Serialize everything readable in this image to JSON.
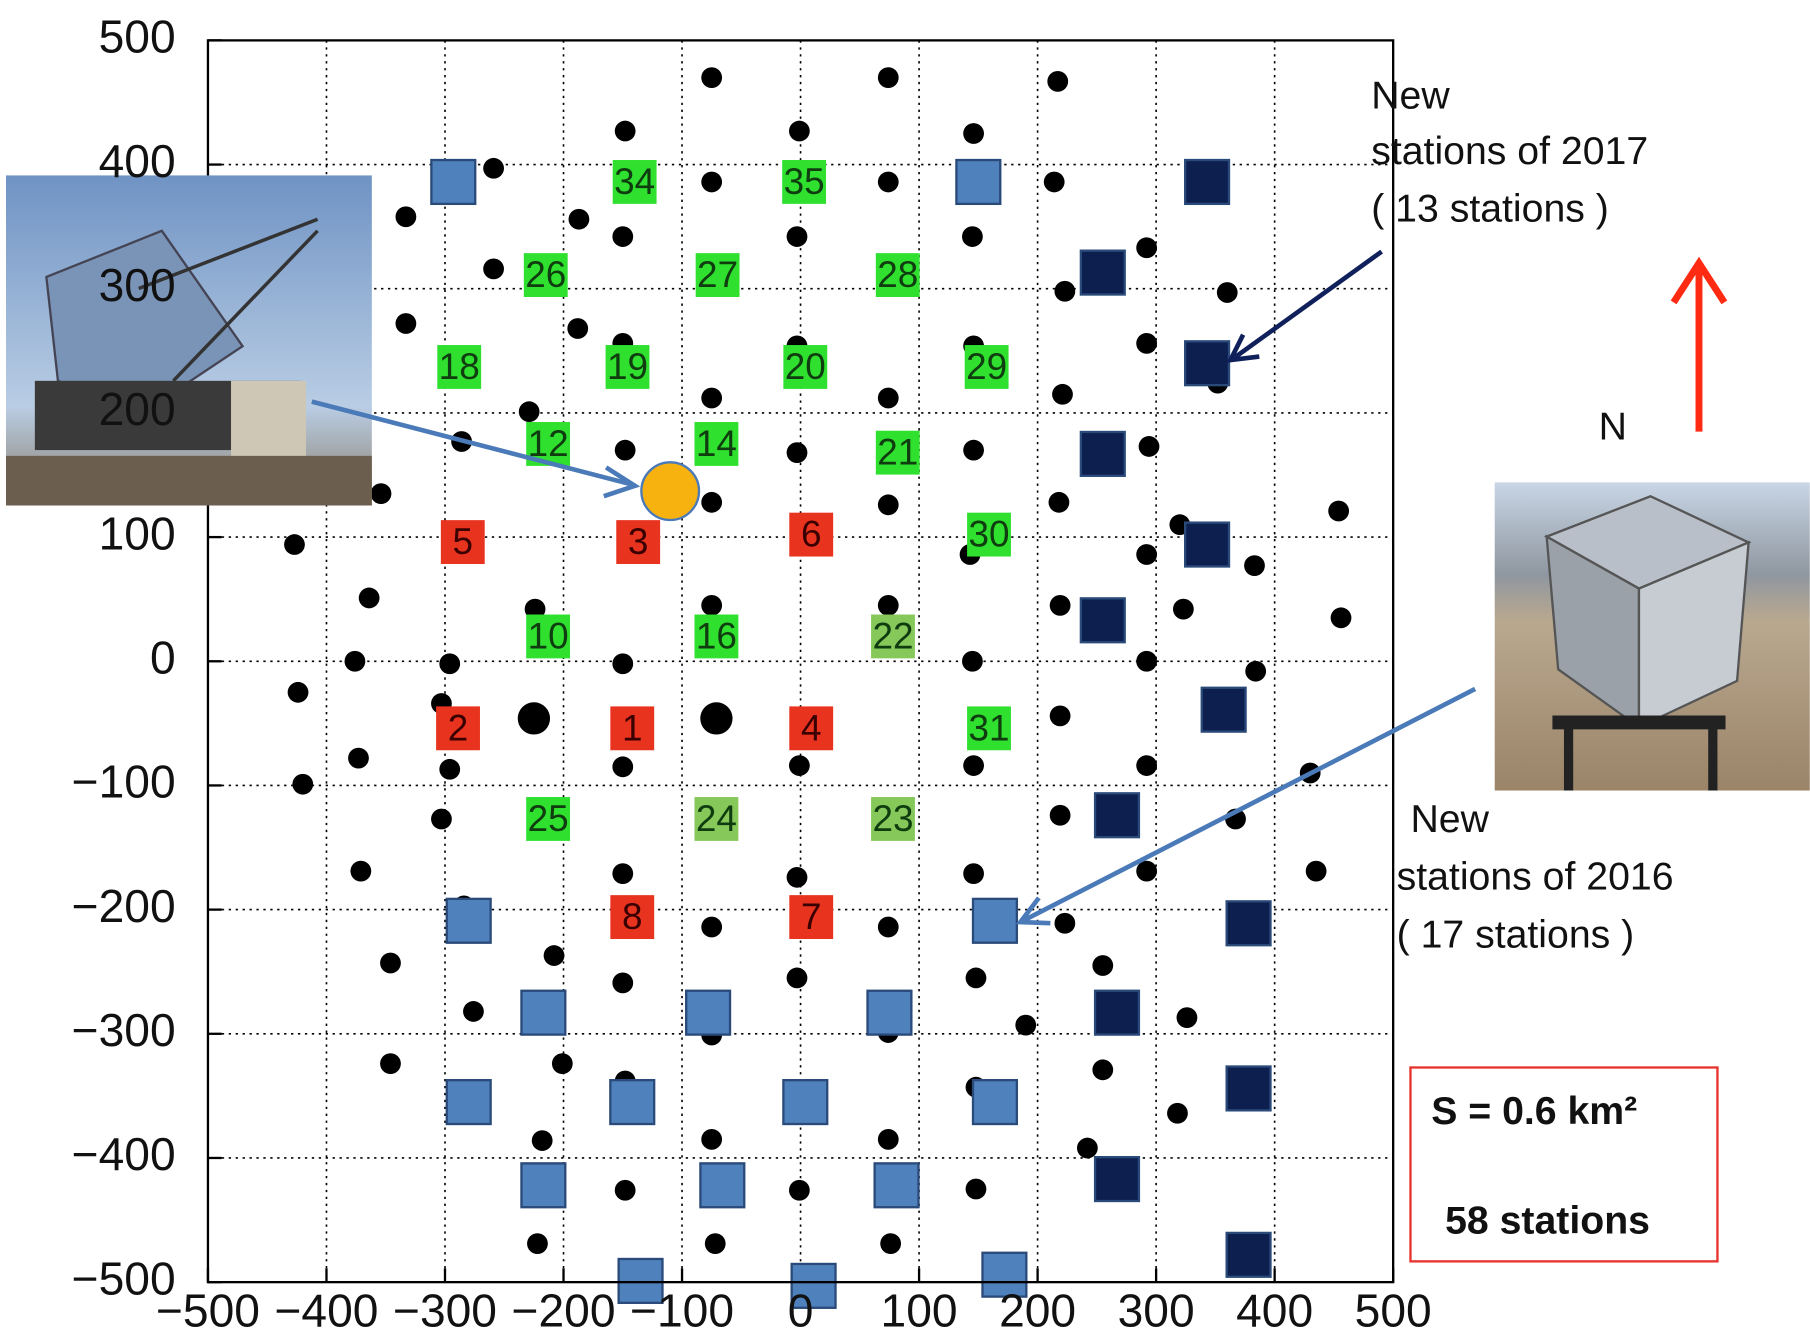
{
  "chart_data": {
    "type": "scatter",
    "xlim": [
      -500,
      500
    ],
    "ylim": [
      -500,
      500
    ],
    "xticks": [
      {
        "value": -500,
        "label": "−500"
      },
      {
        "value": -400,
        "label": "−400"
      },
      {
        "value": -300,
        "label": "−300"
      },
      {
        "value": -200,
        "label": "−200"
      },
      {
        "value": -100,
        "label": "−100"
      },
      0,
      100,
      200,
      300,
      400,
      500
    ],
    "yticks": [
      {
        "value": -500,
        "label": "−500"
      },
      {
        "value": -400,
        "label": "−400"
      },
      {
        "value": -300,
        "label": "−300"
      },
      {
        "value": -200,
        "label": "−200"
      },
      {
        "value": -100,
        "label": "−100"
      },
      0,
      100,
      200,
      300,
      400,
      500
    ],
    "grid": true,
    "series": [
      {
        "marker": "dot",
        "color": "#000000",
        "x": [
          -75,
          74,
          217,
          -148,
          -1,
          146,
          -259,
          -75,
          74,
          214,
          -333,
          -187,
          -150,
          -3,
          145,
          292,
          -259,
          223,
          360,
          -333,
          -188,
          -150,
          -3,
          146,
          292,
          352,
          -75,
          74,
          221,
          -229,
          -286,
          -148,
          -3,
          146,
          294,
          -354,
          -75,
          74,
          218,
          320,
          454,
          -427,
          143,
          292,
          383,
          -364,
          -224,
          -75,
          74,
          219,
          323,
          456,
          -376,
          -296,
          -150,
          145,
          292,
          384,
          -424,
          -303,
          219,
          -373,
          -296,
          -150,
          -1,
          146,
          292,
          430,
          -420,
          -303,
          219,
          367,
          -371,
          -150,
          -3,
          146,
          292,
          435,
          -284,
          -75,
          74,
          223,
          -346,
          -208,
          -150,
          -3,
          148,
          255,
          -276,
          -75,
          74,
          190,
          326,
          -346,
          -201,
          -148,
          148,
          255,
          318,
          -218,
          -75,
          74,
          242,
          -148,
          -1,
          148,
          -222,
          -72,
          76
        ],
        "y": [
          470,
          470,
          467,
          427,
          427,
          425,
          397,
          386,
          386,
          386,
          358,
          356,
          342,
          342,
          342,
          333,
          316,
          298,
          297,
          272,
          268,
          256,
          254,
          254,
          256,
          224,
          212,
          212,
          215,
          201,
          177,
          170,
          168,
          170,
          173,
          135,
          128,
          126,
          128,
          110,
          121,
          94,
          86,
          86,
          77,
          51,
          42,
          45,
          45,
          45,
          42,
          35,
          0,
          -2,
          -2,
          0,
          0,
          -8,
          -25,
          -34,
          -44,
          -78,
          -87,
          -85,
          -84,
          -84,
          -84,
          -90,
          -99,
          -127,
          -124,
          -127,
          -169,
          -171,
          -174,
          -171,
          -169,
          -169,
          -197,
          -214,
          -214,
          -211,
          -243,
          -237,
          -259,
          -255,
          -255,
          -245,
          -282,
          -301,
          -299,
          -293,
          -287,
          -324,
          -324,
          -338,
          -343,
          -329,
          -364,
          -386,
          -385,
          -385,
          -392,
          -426,
          -426,
          -425,
          -469,
          -469,
          -469
        ]
      },
      {
        "marker": "square",
        "color": "#2fe02f",
        "label_color": "#0f3d0f",
        "x": [
          -140,
          3,
          -215,
          -70,
          82,
          -288,
          -146,
          4,
          157,
          -213,
          -71,
          82,
          159,
          -213,
          -71,
          159,
          -213
        ],
        "y": [
          386,
          386,
          311,
          311,
          311,
          237,
          237,
          237,
          237,
          175,
          175,
          168,
          102,
          20,
          20,
          -54,
          -127
        ],
        "labels": [
          "34",
          "35",
          "26",
          "27",
          "28",
          "18",
          "19",
          "20",
          "29",
          "12",
          "14",
          "21",
          "30",
          "10",
          "16",
          "31",
          "25"
        ]
      },
      {
        "marker": "square",
        "color": "#86c85a",
        "label_color": "#0f3d0f",
        "x": [
          78,
          -71,
          78
        ],
        "y": [
          20,
          -127,
          -127
        ],
        "labels": [
          "22",
          "24",
          "23"
        ]
      },
      {
        "marker": "square",
        "color": "#e8331f",
        "label_color": "#3a0000",
        "x": [
          -285,
          -137,
          9,
          -289,
          -142,
          9,
          -142,
          9
        ],
        "y": [
          96,
          96,
          102,
          -54,
          -54,
          -54,
          -206,
          -206
        ],
        "labels": [
          "5",
          "3",
          "6",
          "2",
          "1",
          "4",
          "8",
          "7"
        ]
      },
      {
        "marker": "square",
        "color": "#4f81bd",
        "x": [
          -293,
          150,
          -280,
          164,
          -217,
          -78,
          75,
          -280,
          -142,
          4,
          164,
          -217,
          -66,
          81,
          -135,
          11,
          172
        ],
        "y": [
          386,
          386,
          -209,
          -209,
          -283,
          -283,
          -283,
          -355,
          -355,
          -355,
          -355,
          -422,
          -422,
          -422,
          -499,
          -503,
          -494
        ]
      },
      {
        "marker": "square",
        "color": "#0c1f4f",
        "x": [
          343,
          255,
          343,
          255,
          343,
          255,
          357,
          267,
          378,
          267,
          378,
          267,
          378
        ],
        "y": [
          386,
          313,
          240,
          167,
          94,
          33,
          -39,
          -124,
          -211,
          -283,
          -344,
          -417,
          -478
        ]
      },
      {
        "marker": "big-dot",
        "color": "#000000",
        "x": [
          -225,
          -71
        ],
        "y": [
          -46,
          -46
        ]
      },
      {
        "marker": "sun",
        "color": "#f7b20f",
        "x": [
          -110
        ],
        "y": [
          137
        ]
      }
    ]
  },
  "annotations": [
    {
      "lines": [
        "New",
        "stations of  2017",
        "( 13 stations )"
      ]
    },
    {
      "lines": [
        "N"
      ]
    },
    {
      "lines": [
        "New",
        "stations of  2016",
        "( 17 stations )"
      ]
    },
    {
      "lines": [
        "S = 0.6 km²",
        "58 stations"
      ]
    }
  ]
}
